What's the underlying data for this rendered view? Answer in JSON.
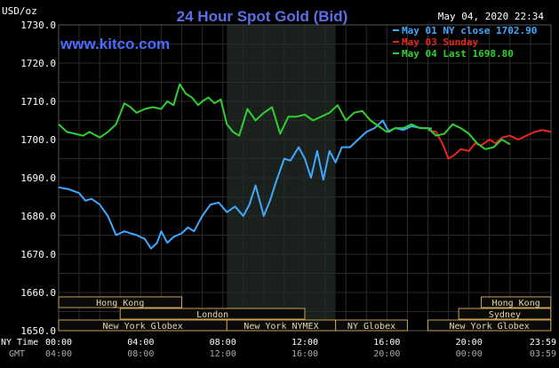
{
  "header": {
    "unit": "USD/oz",
    "title": "24 Hour Spot Gold (Bid)",
    "timestamp": "May 04, 2020 22:34",
    "watermark": "www.kitco.com"
  },
  "colors": {
    "background": "#000000",
    "grid": "#2a2a2a",
    "axis_text": "#ffffff",
    "title": "#5a6fe8",
    "watermark": "#4c6cff",
    "session_shade": "#1a201c",
    "market_fill": "#0a0a0a",
    "market_border": "#c8a050",
    "market_text": "#e8d7a8"
  },
  "legend": [
    {
      "label": "May 01 NY close 1702.90",
      "color": "#3fa8ff"
    },
    {
      "label": "May 03 Sunday",
      "color": "#e8261f"
    },
    {
      "label": "May 04 Last 1698.80",
      "color": "#30d030"
    }
  ],
  "time_axis": {
    "ny_label": "NY Time",
    "gmt_label": "GMT",
    "ny_ticks": [
      "00:00",
      "04:00",
      "08:00",
      "12:00",
      "16:00",
      "20:00",
      "23:59"
    ],
    "gmt_ticks": [
      "04:00",
      "08:00",
      "12:00",
      "16:00",
      "20:00",
      "00:00",
      "03:59"
    ]
  },
  "markets": [
    {
      "name": "Hong Kong",
      "start": 0,
      "end": 6.0,
      "row": 0
    },
    {
      "name": "London",
      "start": 3.0,
      "end": 12.0,
      "row": 1
    },
    {
      "name": "New York Globex",
      "start": 0,
      "end": 8.2,
      "row": 2
    },
    {
      "name": "New York NYMEX",
      "start": 8.2,
      "end": 13.5,
      "row": 2
    },
    {
      "name": "NY Globex",
      "start": 13.5,
      "end": 17.0,
      "row": 2
    },
    {
      "name": "Hong Kong",
      "start": 20.6,
      "end": 23.99,
      "row": 0
    },
    {
      "name": "Sydney",
      "start": 19.5,
      "end": 23.99,
      "row": 1
    },
    {
      "name": "New York Globex",
      "start": 18.0,
      "end": 23.99,
      "row": 2
    }
  ],
  "chart_data": {
    "type": "line",
    "title": "24 Hour Spot Gold (Bid)",
    "ylabel": "USD/oz",
    "xlabel": "",
    "xlim": [
      0,
      24
    ],
    "ylim": [
      1650,
      1730
    ],
    "y_ticks": [
      "1730.0",
      "1720.0",
      "1710.0",
      "1700.0",
      "1690.0",
      "1680.0",
      "1670.0",
      "1660.0",
      "1650.0"
    ],
    "grid": true,
    "legend_position": "top-right",
    "series": [
      {
        "name": "May 01 NY close 1702.90",
        "color": "#3fa8ff",
        "x": [
          0,
          0.5,
          1.0,
          1.3,
          1.6,
          2.0,
          2.4,
          2.8,
          3.2,
          3.5,
          3.8,
          4.2,
          4.5,
          4.8,
          5.0,
          5.3,
          5.6,
          6.0,
          6.3,
          6.6,
          7.0,
          7.4,
          7.8,
          8.2,
          8.6,
          9.0,
          9.3,
          9.6,
          10.0,
          10.3,
          10.6,
          11.0,
          11.3,
          11.7,
          12.0,
          12.3,
          12.6,
          12.9,
          13.2,
          13.5,
          13.8,
          14.2,
          14.6,
          15.0,
          15.4,
          15.8,
          16.1,
          16.4,
          16.8,
          17.2,
          17.7,
          18.2
        ],
        "y": [
          1687.5,
          1687.0,
          1686.0,
          1684.0,
          1684.5,
          1683.0,
          1680.0,
          1675.0,
          1676.0,
          1675.5,
          1675.0,
          1674.0,
          1671.5,
          1673.0,
          1676.0,
          1673.0,
          1674.5,
          1675.5,
          1677.0,
          1676.0,
          1680.0,
          1683.0,
          1683.5,
          1681.0,
          1682.5,
          1680.0,
          1683.0,
          1688.0,
          1680.0,
          1684.0,
          1689.0,
          1695.0,
          1694.5,
          1698.0,
          1695.0,
          1690.0,
          1697.0,
          1689.5,
          1697.0,
          1694.0,
          1698.0,
          1698.0,
          1700.0,
          1702.0,
          1703.0,
          1705.0,
          1702.0,
          1703.0,
          1702.5,
          1703.5,
          1703.0,
          1702.9
        ]
      },
      {
        "name": "May 03 Sunday",
        "color": "#e8261f",
        "x": [
          18.0,
          18.4,
          18.7,
          19.0,
          19.3,
          19.6,
          20.0,
          20.3,
          20.6,
          21.0,
          21.3,
          21.6,
          22.0,
          22.4,
          22.8,
          23.2,
          23.6,
          23.99
        ],
        "y": [
          1702.5,
          1702.0,
          1699.0,
          1695.0,
          1696.0,
          1697.5,
          1697.0,
          1699.0,
          1698.5,
          1700.0,
          1699.0,
          1700.5,
          1701.0,
          1700.0,
          1701.0,
          1702.0,
          1702.5,
          1702.0
        ]
      },
      {
        "name": "May 04 Last 1698.80",
        "color": "#30d030",
        "x": [
          0,
          0.4,
          0.8,
          1.2,
          1.5,
          2.0,
          2.4,
          2.8,
          3.2,
          3.5,
          3.8,
          4.2,
          4.6,
          5.0,
          5.3,
          5.6,
          5.9,
          6.2,
          6.5,
          6.8,
          7.0,
          7.3,
          7.6,
          7.9,
          8.2,
          8.5,
          8.8,
          9.2,
          9.6,
          10.0,
          10.4,
          10.8,
          11.2,
          11.6,
          12.0,
          12.4,
          12.8,
          13.2,
          13.6,
          14.0,
          14.4,
          14.8,
          15.2,
          15.6,
          16.0,
          16.4,
          16.8,
          17.2,
          17.6,
          18.0,
          18.4,
          18.8,
          19.2,
          19.6,
          20.0,
          20.4,
          20.8,
          21.2,
          21.6,
          22.0
        ],
        "y": [
          1704.0,
          1702.0,
          1701.5,
          1701.0,
          1702.0,
          1700.5,
          1702.0,
          1704.0,
          1709.5,
          1708.5,
          1707.0,
          1708.0,
          1708.5,
          1708.0,
          1710.0,
          1709.0,
          1714.5,
          1712.0,
          1711.0,
          1709.0,
          1710.0,
          1711.0,
          1709.5,
          1710.5,
          1704.0,
          1702.0,
          1701.0,
          1708.0,
          1705.0,
          1707.0,
          1708.5,
          1701.5,
          1706.0,
          1706.0,
          1706.5,
          1705.0,
          1706.0,
          1707.0,
          1709.0,
          1705.0,
          1707.0,
          1707.5,
          1705.0,
          1703.5,
          1702.0,
          1703.0,
          1703.0,
          1704.0,
          1703.0,
          1703.0,
          1701.0,
          1701.5,
          1704.0,
          1703.0,
          1701.5,
          1699.0,
          1697.5,
          1698.0,
          1700.0,
          1698.8
        ]
      }
    ]
  }
}
